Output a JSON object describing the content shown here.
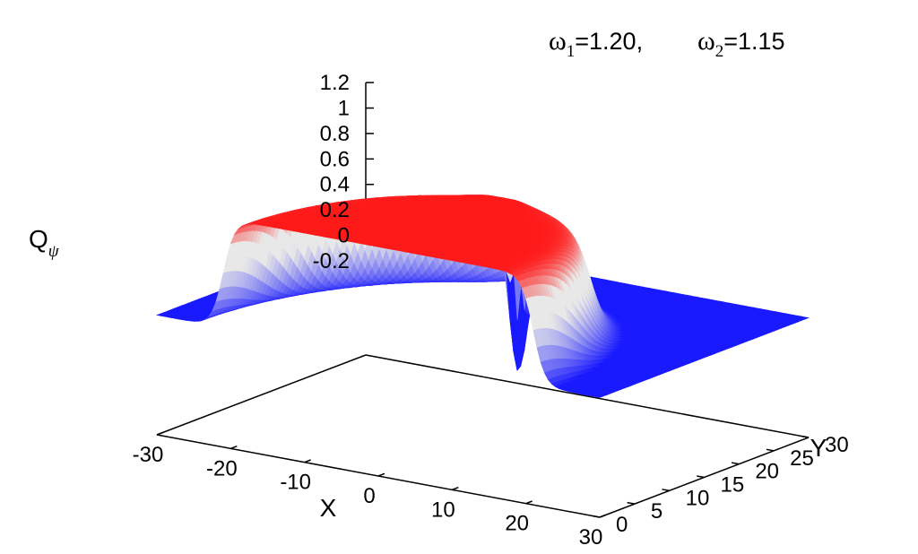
{
  "chart_data": {
    "type": "surface3d",
    "title_parts": {
      "omega_symbol": "ω",
      "w1_sub": "1",
      "w1_val": "=1.20,",
      "w2_sub": "2",
      "w2_val": "=1.15"
    },
    "zlabel": {
      "main": "Q",
      "sub": "ψ"
    },
    "xlabel": "X",
    "ylabel": "Y",
    "x_ticks": [
      "-30",
      "-20",
      "-10",
      "0",
      "10",
      "20",
      "30"
    ],
    "y_ticks": [
      "0",
      "5",
      "10",
      "15",
      "20",
      "25",
      "30"
    ],
    "z_ticks": [
      "1.2",
      "1",
      "0.8",
      "0.6",
      "0.4",
      "0.2",
      "0",
      "-0.2"
    ],
    "x_range": [
      -30,
      30
    ],
    "y_range": [
      0,
      30
    ],
    "z_range": [
      -0.2,
      1.2
    ],
    "surface": {
      "background_value": 0,
      "ring_radius": 21,
      "ring_width": 3.2,
      "ring_height": 0.86,
      "peak_center": [
        -1,
        22
      ],
      "peak_height": 0.93,
      "peak_width": 3.2,
      "dip_center": [
        -1,
        21
      ],
      "dip_depth": -0.19,
      "dip_width": 0.9
    },
    "colors": {
      "low": "#1a1aff",
      "mid": "#e8e8e8",
      "high": "#ff1a1a"
    }
  }
}
